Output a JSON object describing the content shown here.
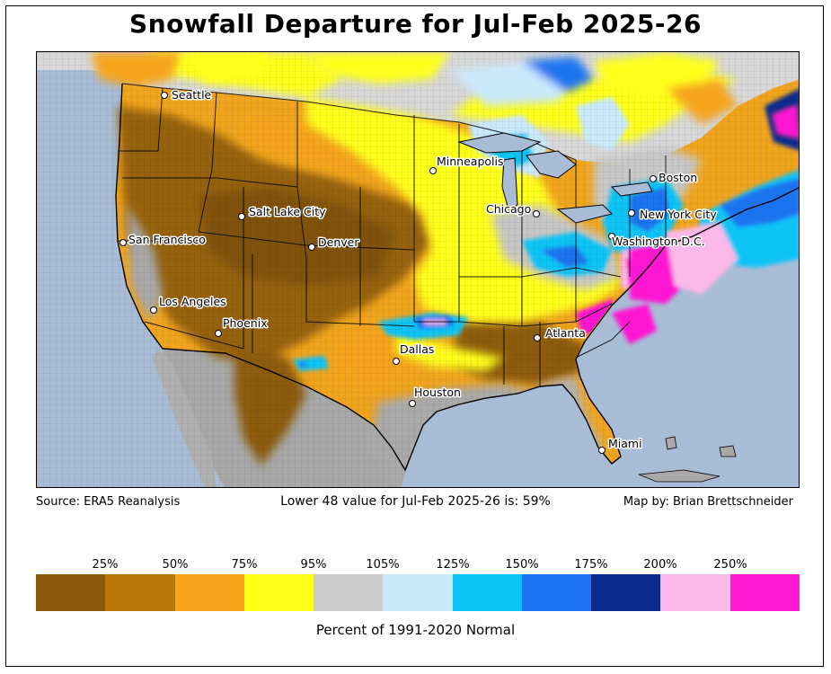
{
  "title": "Snowfall Departure for Jul-Feb 2025-26",
  "source": "Source: ERA5 Reanalysis",
  "summary": "Lower 48 value for Jul-Feb 2025-26 is: 59%",
  "credit": "Map by: Brian Brettschneider",
  "legend": {
    "title": "Percent of 1991-2020 Normal",
    "ticks": [
      "25%",
      "50%",
      "75%",
      "95%",
      "105%",
      "125%",
      "150%",
      "175%",
      "200%",
      "250%"
    ],
    "colors": [
      "#8b5a0a",
      "#b8790a",
      "#f5a41c",
      "#ffff1a",
      "#cccccc",
      "#c9e9fb",
      "#0bc4f5",
      "#1d73f0",
      "#0b2a8c",
      "#fbb8e8",
      "#ff19d2"
    ]
  },
  "cities": [
    {
      "name": "Seattle"
    },
    {
      "name": "San Francisco"
    },
    {
      "name": "Los Angeles"
    },
    {
      "name": "Phoenix"
    },
    {
      "name": "Salt Lake City"
    },
    {
      "name": "Denver"
    },
    {
      "name": "Minneapolis"
    },
    {
      "name": "Chicago"
    },
    {
      "name": "Dallas"
    },
    {
      "name": "Houston"
    },
    {
      "name": "Atlanta"
    },
    {
      "name": "Miami"
    },
    {
      "name": "Boston"
    },
    {
      "name": "New York City"
    },
    {
      "name": "Washington D.C."
    }
  ]
}
